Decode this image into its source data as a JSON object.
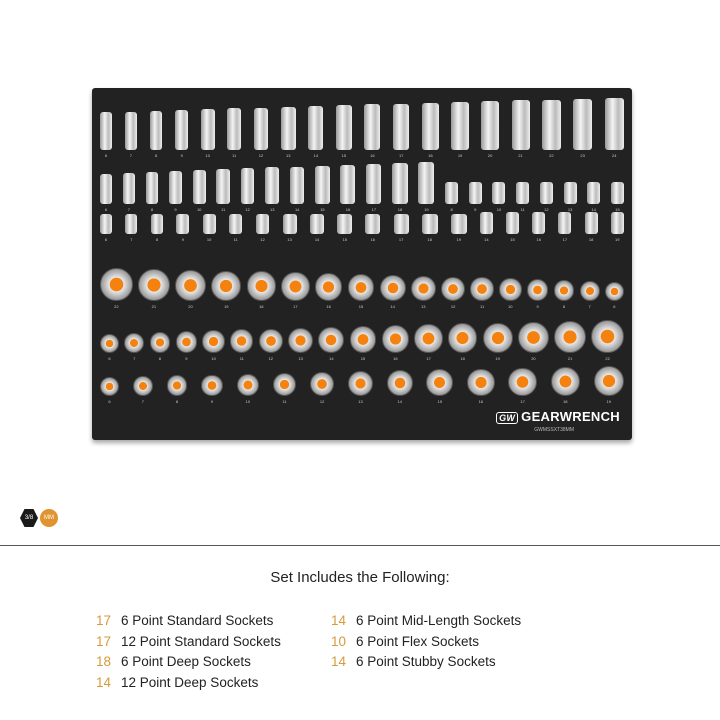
{
  "tray": {
    "brand": "GEARWRENCH",
    "logo": "GW",
    "model": "GWMSSXT38MM",
    "accent": "#f07d10",
    "rows": [
      {
        "type": "deep",
        "sizes": [
          "6",
          "7",
          "8",
          "9",
          "10",
          "11",
          "12",
          "13",
          "14",
          "15",
          "16",
          "17",
          "18",
          "19",
          "20",
          "21",
          "22",
          "23",
          "24"
        ]
      },
      {
        "type": "mid",
        "sizes": [
          "6",
          "7",
          "8",
          "9",
          "10",
          "11",
          "12",
          "13",
          "14",
          "15",
          "16",
          "17",
          "18",
          "19",
          "8",
          "9",
          "10",
          "11",
          "12",
          "13",
          "14",
          "15"
        ]
      },
      {
        "type": "stubby",
        "sizes": [
          "6",
          "7",
          "8",
          "9",
          "10",
          "11",
          "12",
          "13",
          "14",
          "15",
          "16",
          "17",
          "18",
          "19",
          "14",
          "15",
          "16",
          "17",
          "18",
          "19"
        ]
      },
      {
        "type": "standard",
        "sizes": [
          "22",
          "21",
          "20",
          "19",
          "18",
          "17",
          "16",
          "15",
          "14",
          "13",
          "12",
          "11",
          "10",
          "9",
          "8",
          "7",
          "6"
        ]
      },
      {
        "type": "standard",
        "sizes": [
          "6",
          "7",
          "8",
          "9",
          "10",
          "11",
          "12",
          "13",
          "14",
          "15",
          "16",
          "17",
          "18",
          "19",
          "20",
          "21",
          "22"
        ]
      },
      {
        "type": "standard",
        "sizes": [
          "6",
          "7",
          "8",
          "9",
          "10",
          "11",
          "12",
          "13",
          "14",
          "15",
          "16",
          "17",
          "18",
          "19"
        ]
      }
    ]
  },
  "badges": {
    "drive": "3/8",
    "unit": "MM"
  },
  "includes": {
    "title": "Set Includes the Following:",
    "left": [
      {
        "count": "17",
        "label": "6 Point Standard Sockets"
      },
      {
        "count": "17",
        "label": "12 Point Standard Sockets"
      },
      {
        "count": "18",
        "label": "6 Point Deep Sockets"
      },
      {
        "count": "14",
        "label": "12 Point Deep Sockets"
      }
    ],
    "right": [
      {
        "count": "14",
        "label": "6 Point Mid-Length Sockets"
      },
      {
        "count": "10",
        "label": "6 Point Flex Sockets"
      },
      {
        "count": "14",
        "label": "6 Point Stubby Sockets"
      }
    ]
  }
}
